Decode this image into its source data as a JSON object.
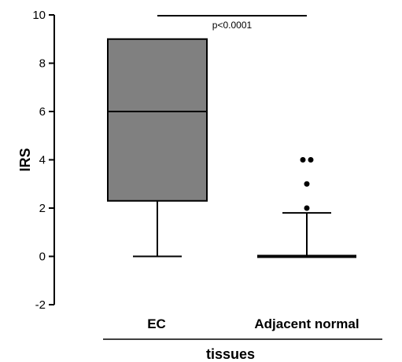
{
  "chart_data": {
    "type": "box",
    "ylabel": "IRS",
    "xlabel": "tissues",
    "categories": [
      "EC",
      "Adjacent normal"
    ],
    "ylim": [
      -2,
      10
    ],
    "yticks": [
      "-2",
      "0",
      "2",
      "4",
      "6",
      "8",
      "10"
    ],
    "grid": false,
    "box_fill": "#808080",
    "series": [
      {
        "category": "EC",
        "whisker_low": 0,
        "q1": 2.3,
        "median": 6,
        "q3": 9,
        "whisker_high": 9,
        "outliers": []
      },
      {
        "category": "Adjacent normal",
        "whisker_low": 0,
        "q1": 0,
        "median": 0,
        "q3": 0,
        "whisker_high": 1.8,
        "outliers": [
          {
            "value": 2
          },
          {
            "value": 3
          },
          {
            "value": 4
          },
          {
            "value": 4
          }
        ]
      }
    ],
    "annotation": {
      "text": "p<0.0001",
      "from": "EC",
      "to": "Adjacent normal",
      "y": 10
    }
  }
}
